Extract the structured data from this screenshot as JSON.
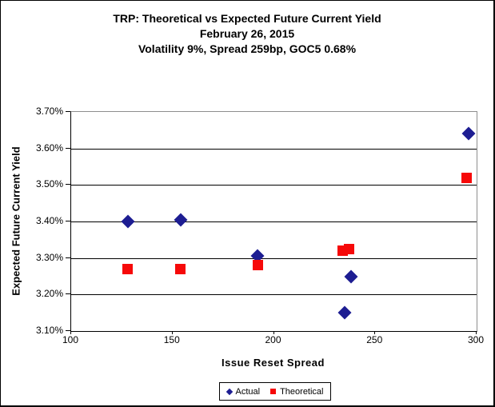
{
  "chart_data": {
    "type": "scatter",
    "title": "TRP: Theoretical vs Expected Future Current Yield",
    "subtitle_lines": [
      "February 26, 2015",
      "Volatility 9%, Spread 259bp, GOC5 0.68%"
    ],
    "xlabel": "Issue Reset Spread",
    "ylabel": "Expected Future Current Yield",
    "xlim": [
      100,
      300
    ],
    "ylim": [
      3.1,
      3.7
    ],
    "x_ticks": [
      100,
      150,
      200,
      250,
      300
    ],
    "y_ticks": [
      3.1,
      3.2,
      3.3,
      3.4,
      3.5,
      3.6,
      3.7
    ],
    "y_tick_suffix": "%",
    "grid": true,
    "legend_position": "bottom-center",
    "plot_border_color": "#8e8e8e",
    "gridline_color": "#000000",
    "series": [
      {
        "name": "Actual",
        "marker": "diamond",
        "color": "#1d1d92",
        "points": [
          [
            128,
            3.4
          ],
          [
            154,
            3.405
          ],
          [
            192,
            3.305
          ],
          [
            235,
            3.15
          ],
          [
            238,
            3.25
          ],
          [
            296,
            3.64
          ]
        ]
      },
      {
        "name": "Theoretical",
        "marker": "square",
        "color": "#f60909",
        "points": [
          [
            128,
            3.27
          ],
          [
            154,
            3.27
          ],
          [
            192,
            3.28
          ],
          [
            234,
            3.32
          ],
          [
            237,
            3.325
          ],
          [
            295,
            3.52
          ]
        ]
      }
    ]
  }
}
